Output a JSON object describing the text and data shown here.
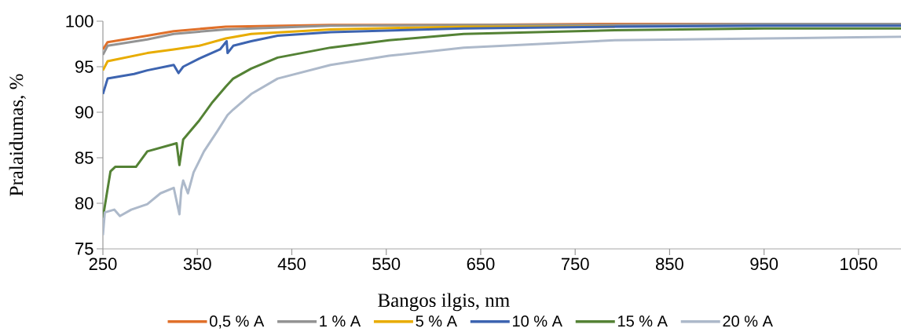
{
  "chart_data": {
    "type": "line",
    "xlabel": "Bangos ilgis, nm",
    "ylabel": "Pralaidumas, %",
    "xlim": [
      250,
      1095
    ],
    "ylim": [
      75,
      100
    ],
    "xticks": [
      250,
      350,
      450,
      550,
      650,
      750,
      850,
      950,
      1050
    ],
    "yticks": [
      75,
      80,
      85,
      90,
      95,
      100
    ],
    "legend": "bottom",
    "series": [
      {
        "name": "0,5 % A",
        "color": "#e0702a",
        "x": [
          250,
          255,
          297,
          325,
          380,
          491,
          632,
          792,
          950,
          1095
        ],
        "values": [
          96.9,
          97.7,
          98.4,
          98.9,
          99.4,
          99.6,
          99.6,
          99.7,
          99.7,
          99.7
        ]
      },
      {
        "name": "1 % A",
        "color": "#939393",
        "x": [
          250,
          255,
          297,
          325,
          380,
          491,
          632,
          792,
          950,
          1095
        ],
        "values": [
          96.3,
          97.3,
          98.0,
          98.6,
          99.1,
          99.5,
          99.6,
          99.6,
          99.7,
          99.7
        ]
      },
      {
        "name": "5 % A",
        "color": "#e8ac00",
        "x": [
          250,
          255,
          297,
          325,
          352,
          380,
          407,
          491,
          632,
          792
        ],
        "values": [
          94.6,
          95.6,
          96.5,
          96.9,
          97.3,
          98.1,
          98.6,
          99.1,
          99.4,
          99.4
        ]
      },
      {
        "name": "10 % A",
        "color": "#3d64b0",
        "x": [
          250,
          255,
          283,
          297,
          325,
          330,
          335,
          352,
          374,
          381,
          382,
          388,
          407,
          435,
          491,
          632,
          792,
          950,
          1095
        ],
        "values": [
          92.0,
          93.7,
          94.2,
          94.6,
          95.2,
          94.3,
          95.0,
          95.9,
          96.9,
          97.8,
          96.5,
          97.3,
          97.8,
          98.4,
          98.8,
          99.2,
          99.4,
          99.5,
          99.5
        ]
      },
      {
        "name": "15 % A",
        "color": "#548235",
        "x": [
          250,
          255,
          258,
          263,
          285,
          297,
          328,
          331,
          335,
          352,
          366,
          380,
          388,
          407,
          435,
          491,
          553,
          632,
          792,
          950,
          1095
        ],
        "values": [
          78.4,
          81.6,
          83.5,
          84.0,
          84.0,
          85.7,
          86.6,
          84.2,
          87.0,
          89.1,
          91.1,
          92.8,
          93.7,
          94.8,
          96.0,
          97.1,
          97.9,
          98.6,
          99.0,
          99.2,
          99.2
        ]
      },
      {
        "name": "20 % A",
        "color": "#adb9ca",
        "x": [
          250,
          252,
          262,
          268,
          280,
          297,
          311,
          325,
          331,
          333,
          335,
          340,
          346,
          357,
          371,
          382,
          388,
          407,
          435,
          491,
          553,
          632,
          792,
          950,
          1095
        ],
        "values": [
          76.5,
          79.0,
          79.3,
          78.6,
          79.3,
          79.9,
          81.1,
          81.7,
          78.8,
          81.5,
          82.5,
          81.1,
          83.4,
          85.7,
          87.9,
          89.7,
          90.3,
          92.0,
          93.7,
          95.2,
          96.2,
          97.1,
          97.9,
          98.1,
          98.3
        ]
      }
    ]
  }
}
